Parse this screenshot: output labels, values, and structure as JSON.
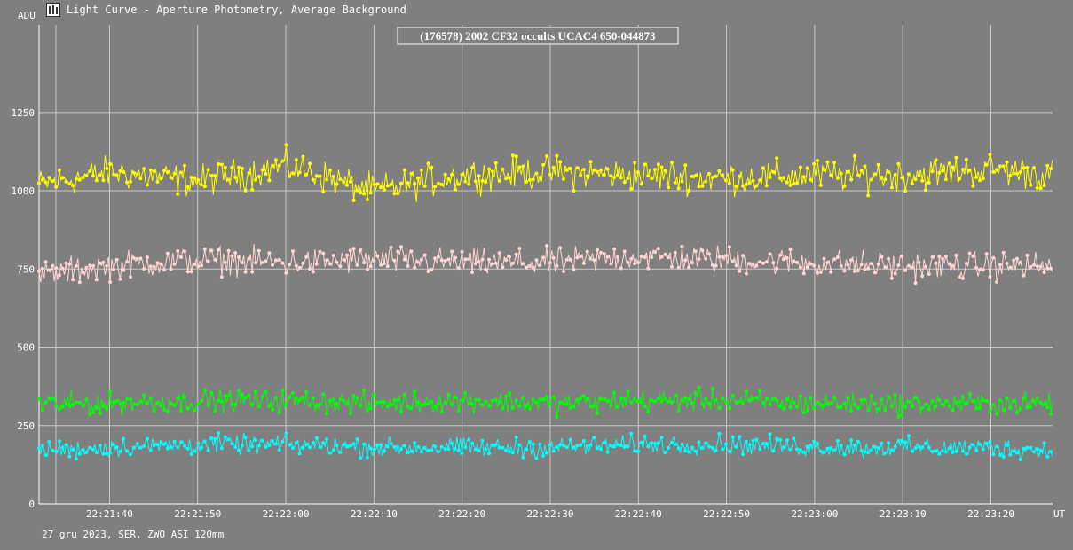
{
  "window": {
    "title": "Light Curve - Aperture Photometry, Average Background",
    "icon": "light-curve-app-icon"
  },
  "footer": {
    "text": "27 gru 2023, SER, ZWO ASI 120mm"
  },
  "chart_data": {
    "type": "line",
    "title": "(176578) 2002 CF32 occults UCAC4 650-044873",
    "ylabel": "ADU",
    "xlabel": "UT",
    "ylim": [
      0,
      1530
    ],
    "yticks": [
      0,
      250,
      500,
      750,
      1000,
      1250
    ],
    "xlim": [
      "22:21:32",
      "22:23:27"
    ],
    "xticks": [
      "22:21:40",
      "22:21:50",
      "22:22:00",
      "22:22:10",
      "22:22:20",
      "22:22:30",
      "22:22:40",
      "22:22:50",
      "22:23:00",
      "22:23:10",
      "22:23:20"
    ],
    "grid": true,
    "background": "#7f7f7f",
    "series": [
      {
        "color": "#ffff00",
        "x": [
          "22:21:32",
          "22:21:40",
          "22:21:50",
          "22:22:00",
          "22:22:10",
          "22:22:20",
          "22:22:30",
          "22:22:40",
          "22:22:50",
          "22:23:00",
          "22:23:10",
          "22:23:20",
          "22:23:27"
        ],
        "values": [
          1020,
          1060,
          1030,
          1080,
          1000,
          1050,
          1060,
          1050,
          1040,
          1050,
          1050,
          1070,
          1050
        ],
        "spread": 75
      },
      {
        "color": "#ffd4d4",
        "x": [
          "22:21:32",
          "22:21:40",
          "22:21:50",
          "22:22:00",
          "22:22:10",
          "22:22:20",
          "22:22:30",
          "22:22:40",
          "22:22:50",
          "22:23:00",
          "22:23:10",
          "22:23:20",
          "22:23:27"
        ],
        "values": [
          730,
          760,
          780,
          770,
          780,
          770,
          770,
          790,
          780,
          770,
          760,
          760,
          760
        ],
        "spread": 65
      },
      {
        "color": "#00ff00",
        "x": [
          "22:21:32",
          "22:21:40",
          "22:21:50",
          "22:22:00",
          "22:22:10",
          "22:22:20",
          "22:22:30",
          "22:22:40",
          "22:22:50",
          "22:23:00",
          "22:23:10",
          "22:23:20",
          "22:23:27"
        ],
        "values": [
          320,
          320,
          330,
          330,
          320,
          330,
          320,
          330,
          330,
          320,
          320,
          320,
          320
        ],
        "spread": 50
      },
      {
        "color": "#00ffff",
        "x": [
          "22:21:32",
          "22:21:40",
          "22:21:50",
          "22:22:00",
          "22:22:10",
          "22:22:20",
          "22:22:30",
          "22:22:40",
          "22:22:50",
          "22:23:00",
          "22:23:10",
          "22:23:20",
          "22:23:27"
        ],
        "values": [
          170,
          180,
          190,
          190,
          180,
          180,
          180,
          190,
          190,
          180,
          180,
          180,
          170
        ],
        "spread": 45
      }
    ]
  }
}
